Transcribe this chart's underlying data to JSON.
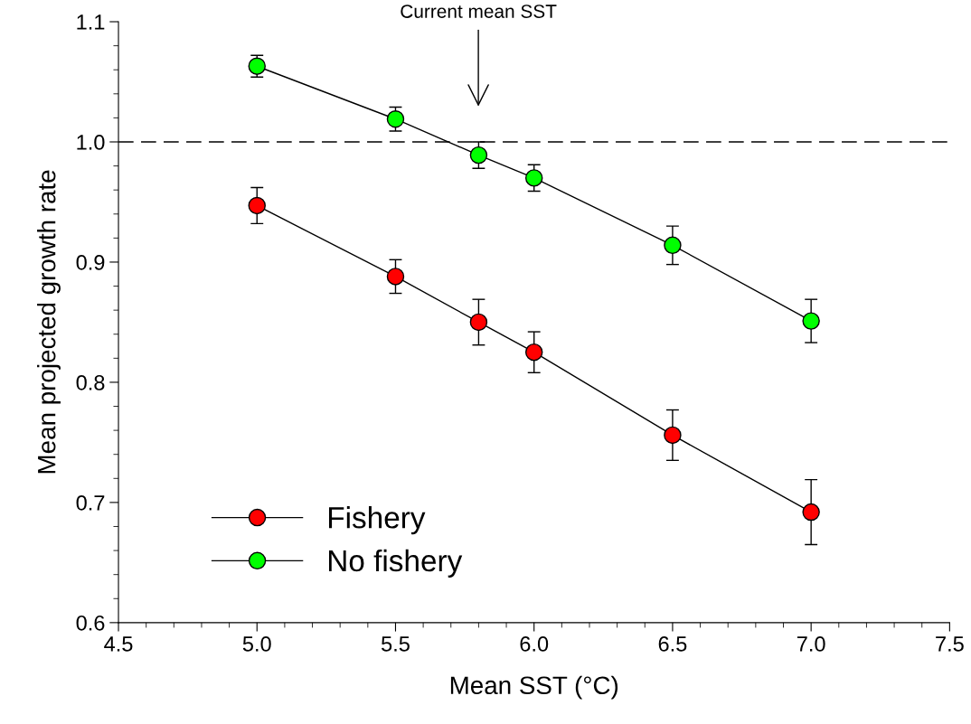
{
  "chart_data": {
    "type": "line",
    "xlabel": "Mean SST (°C)",
    "ylabel": "Mean projected growth rate",
    "x": [
      5.0,
      5.5,
      5.8,
      6.0,
      6.5,
      7.0
    ],
    "series": [
      {
        "name": "Fishery",
        "color": "#ff0000",
        "values": [
          0.947,
          0.888,
          0.85,
          0.825,
          0.756,
          0.692
        ],
        "errors": [
          0.015,
          0.014,
          0.019,
          0.017,
          0.021,
          0.027
        ]
      },
      {
        "name": "No fishery",
        "color": "#00ff00",
        "values": [
          1.063,
          1.019,
          0.989,
          0.97,
          0.914,
          0.851
        ],
        "errors": [
          0.009,
          0.01,
          0.011,
          0.011,
          0.016,
          0.018
        ]
      }
    ],
    "xlim": [
      4.5,
      7.5
    ],
    "xticks": [
      {
        "value": 4.5,
        "label": "4.5"
      },
      {
        "value": 5.0,
        "label": "5.0"
      },
      {
        "value": 5.5,
        "label": "5.5"
      },
      {
        "value": 6.0,
        "label": "6.0"
      },
      {
        "value": 6.5,
        "label": "6.5"
      },
      {
        "value": 7.0,
        "label": "7.0"
      },
      {
        "value": 7.5,
        "label": "7.5"
      }
    ],
    "ylim": [
      0.6,
      1.1
    ],
    "yticks": [
      {
        "value": 0.6,
        "label": "0.6"
      },
      {
        "value": 0.7,
        "label": "0.7"
      },
      {
        "value": 0.8,
        "label": "0.8"
      },
      {
        "value": 0.9,
        "label": "0.9"
      },
      {
        "value": 1.0,
        "label": "1.0"
      },
      {
        "value": 1.1,
        "label": "1.1"
      }
    ],
    "ref_lines": [
      {
        "axis": "y",
        "value": 1.0,
        "line_style": "dashed",
        "color": "#000000"
      }
    ],
    "annotations": [
      "Current mean SST"
    ],
    "marker": "circle",
    "line_style": "solid",
    "grid": false,
    "legend": "bottom left"
  }
}
